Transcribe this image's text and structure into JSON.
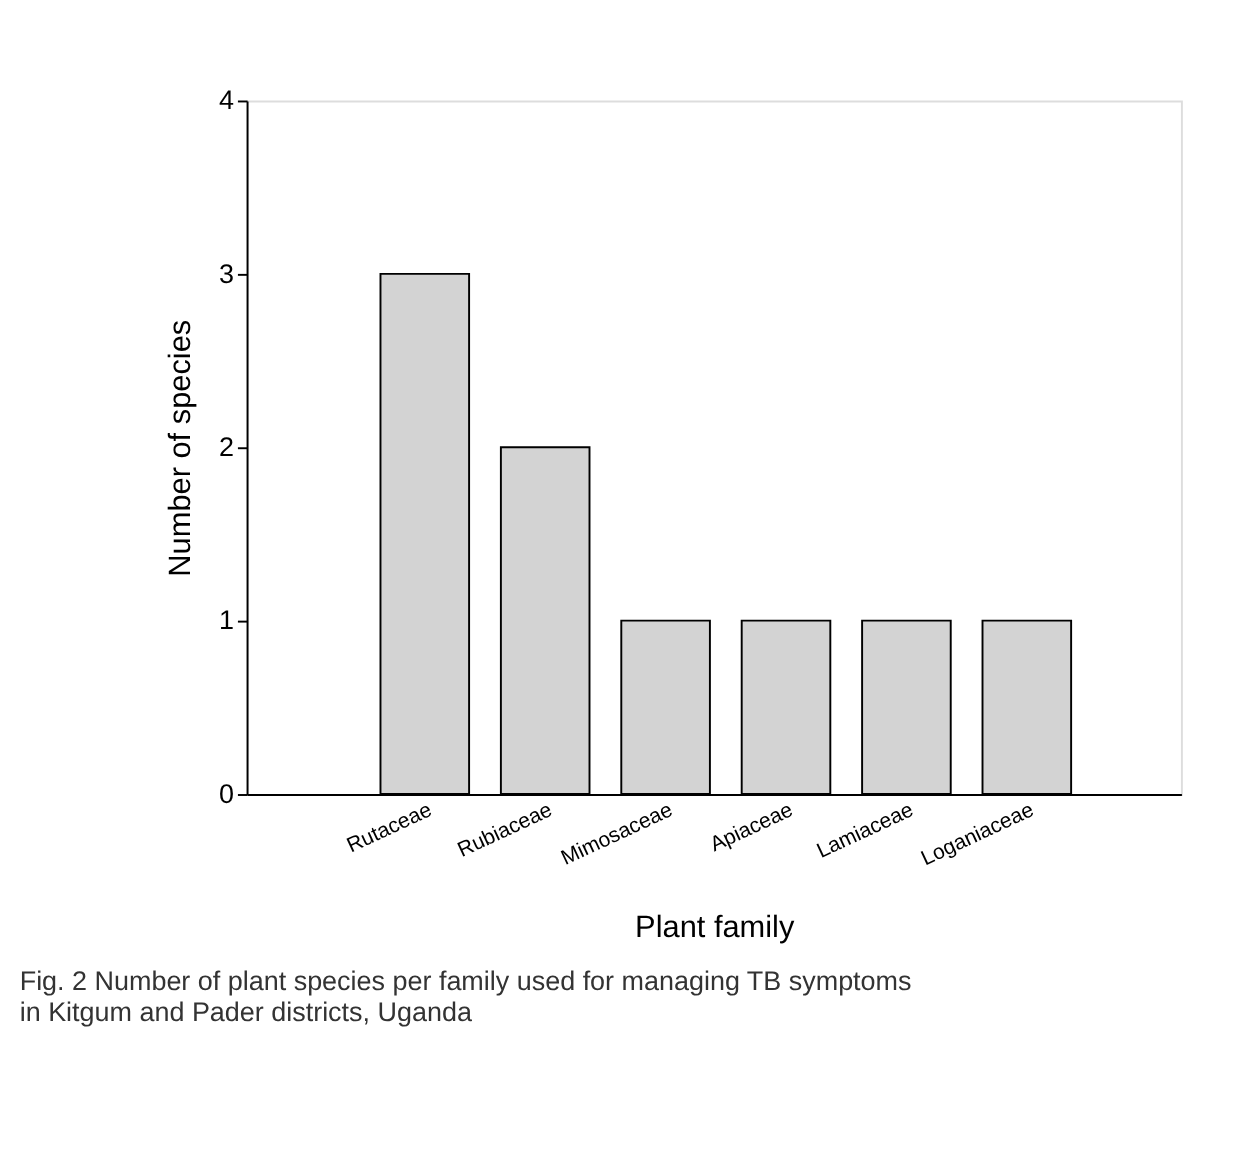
{
  "chart_data": {
    "type": "bar",
    "xlabel": "Plant family",
    "ylabel": "Number of species",
    "categories": [
      "Rutaceae",
      "Rubiaceae",
      "Mimosaceae",
      "Apiaceae",
      "Lamiaceae",
      "Loganiaceae"
    ],
    "values": [
      3,
      2,
      1,
      1,
      1,
      1
    ],
    "color": "#d3d3d3",
    "ylim": [
      0,
      4
    ],
    "yticks": [
      0,
      1,
      2,
      3,
      4
    ],
    "grid": false,
    "annotations": [
      "Fig. 2  Number of plant species per family used for managing TB symptoms in Kitgum and Pader districts, Uganda"
    ]
  }
}
